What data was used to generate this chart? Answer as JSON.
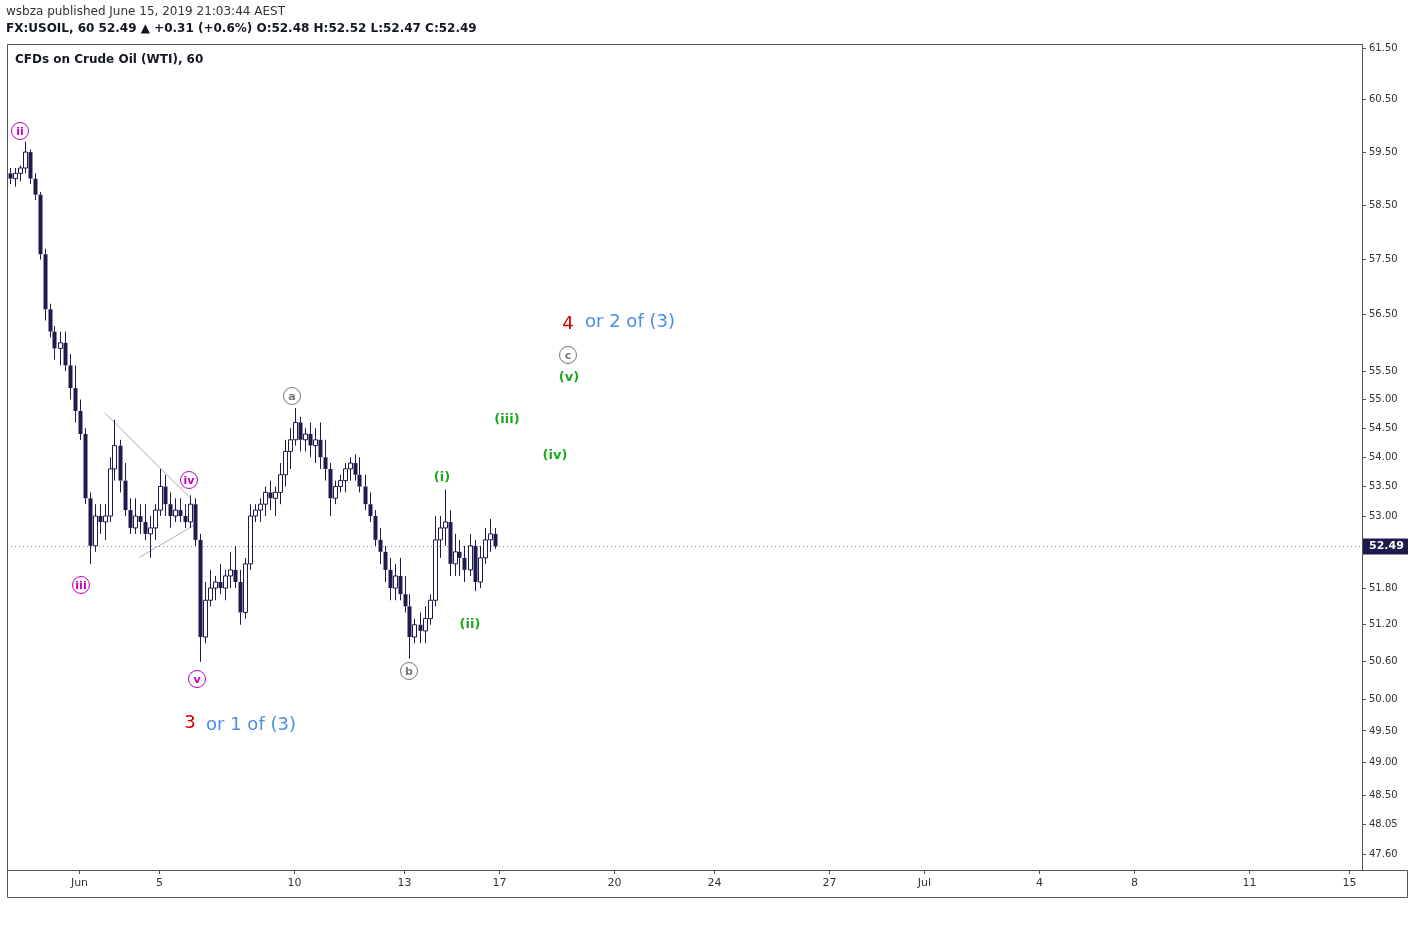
{
  "chart_data": {
    "type": "candlestick",
    "title": "CFDs on Crude Oil (WTI), 60",
    "subtitle": "FX:USOIL, 60 52.49 ▲ +0.31 (+0.6%) O:52.48 H:52.52 L:52.47 C:52.49",
    "categories": [
      null,
      null,
      null,
      null,
      null,
      null,
      null,
      null,
      null,
      null,
      null,
      null,
      null,
      null,
      "Jun",
      null,
      null,
      null,
      null,
      null,
      null,
      null,
      null,
      null,
      null,
      null,
      null,
      null,
      null,
      null,
      "5",
      null,
      null,
      null,
      null,
      null,
      null,
      null,
      null,
      null,
      null,
      null,
      null,
      null,
      null,
      null,
      null,
      null,
      null,
      null,
      null,
      null,
      null,
      null,
      null,
      null,
      null,
      "10",
      null,
      null,
      null,
      null,
      null,
      null,
      null,
      null,
      null,
      null,
      null,
      null,
      null,
      null,
      null,
      null,
      null,
      null,
      null,
      null,
      null,
      "13",
      null,
      null,
      null,
      null,
      null,
      null,
      null,
      null,
      null,
      null,
      null,
      null,
      null,
      null,
      null,
      null,
      null,
      null,
      "17",
      null,
      null,
      null,
      null,
      null,
      null,
      null,
      null,
      null,
      null,
      null,
      null,
      null,
      null,
      null,
      null,
      null,
      null,
      null,
      null,
      null,
      null,
      "20",
      null,
      null,
      null,
      null,
      null,
      null,
      null,
      null,
      null,
      null,
      null,
      null,
      null,
      null,
      null,
      null,
      null,
      null,
      null,
      "24",
      null,
      null,
      null,
      null,
      null,
      null,
      null,
      null,
      null,
      null,
      null,
      null,
      null,
      null,
      null,
      null,
      null,
      null,
      null,
      null,
      null,
      null,
      "27",
      null,
      null,
      null,
      null,
      null,
      null,
      null,
      null,
      null,
      null,
      null,
      null,
      null,
      null,
      null,
      null,
      null,
      null,
      "Jul",
      null,
      null,
      null,
      null,
      null,
      null,
      null,
      null,
      null,
      null,
      null,
      null,
      null,
      null,
      null,
      null,
      null,
      null,
      null,
      null,
      null,
      null,
      "4",
      null,
      null,
      null,
      null,
      null,
      null,
      null,
      null,
      null,
      null,
      null,
      null,
      null,
      null,
      null,
      null,
      null,
      null,
      "8",
      null,
      null,
      null,
      null,
      null,
      null,
      null,
      null,
      null,
      null,
      null,
      null,
      null,
      null,
      null,
      null,
      null,
      null,
      null,
      null,
      null,
      null,
      "11",
      null,
      null,
      null,
      null,
      null,
      null,
      null,
      null,
      null,
      null,
      null,
      null,
      null,
      null,
      null,
      null,
      null,
      null,
      null,
      "15",
      null,
      null
    ],
    "ohlc": [
      [
        59.1,
        59.2,
        58.9,
        59.0
      ],
      [
        59.0,
        59.2,
        58.85,
        59.1
      ],
      [
        59.1,
        59.25,
        58.95,
        59.2
      ],
      [
        59.2,
        59.7,
        59.1,
        59.5
      ],
      [
        59.5,
        59.55,
        58.9,
        59.0
      ],
      [
        59.0,
        59.1,
        58.6,
        58.7
      ],
      [
        58.7,
        58.75,
        57.5,
        57.6
      ],
      [
        57.6,
        57.7,
        56.4,
        56.6
      ],
      [
        56.6,
        56.7,
        56.1,
        56.2
      ],
      [
        56.2,
        56.3,
        55.7,
        55.9
      ],
      [
        55.9,
        56.2,
        55.6,
        56.0
      ],
      [
        56.0,
        56.2,
        55.5,
        55.6
      ],
      [
        55.6,
        55.8,
        55.0,
        55.2
      ],
      [
        55.2,
        55.6,
        54.6,
        54.8
      ],
      [
        54.8,
        55.0,
        54.3,
        54.4
      ],
      [
        54.4,
        54.5,
        53.2,
        53.3
      ],
      [
        53.3,
        53.4,
        52.2,
        52.5
      ],
      [
        52.5,
        53.2,
        52.4,
        53.0
      ],
      [
        53.0,
        53.2,
        52.7,
        52.9
      ],
      [
        52.9,
        53.2,
        52.6,
        53.0
      ],
      [
        53.0,
        54.0,
        52.9,
        53.8
      ],
      [
        53.8,
        54.65,
        53.6,
        54.2
      ],
      [
        54.2,
        54.3,
        53.4,
        53.6
      ],
      [
        53.6,
        53.9,
        53.0,
        53.1
      ],
      [
        53.1,
        53.3,
        52.7,
        52.8
      ],
      [
        52.8,
        53.3,
        52.7,
        53.0
      ],
      [
        53.0,
        53.2,
        52.7,
        52.9
      ],
      [
        52.9,
        53.2,
        52.6,
        52.7
      ],
      [
        52.7,
        53.0,
        52.3,
        52.8
      ],
      [
        52.8,
        53.2,
        52.6,
        53.1
      ],
      [
        53.1,
        53.8,
        53.0,
        53.5
      ],
      [
        53.5,
        53.7,
        53.0,
        53.2
      ],
      [
        53.2,
        53.4,
        52.8,
        53.0
      ],
      [
        53.0,
        53.3,
        52.9,
        53.1
      ],
      [
        53.1,
        53.3,
        52.9,
        53.0
      ],
      [
        53.0,
        53.2,
        52.8,
        52.9
      ],
      [
        52.9,
        53.35,
        52.8,
        53.2
      ],
      [
        53.2,
        53.3,
        52.5,
        52.6
      ],
      [
        52.6,
        52.7,
        50.6,
        51.0
      ],
      [
        51.0,
        51.9,
        50.9,
        51.6
      ],
      [
        51.6,
        52.1,
        51.5,
        51.8
      ],
      [
        51.8,
        52.0,
        51.6,
        51.9
      ],
      [
        51.9,
        52.2,
        51.7,
        51.8
      ],
      [
        51.8,
        52.1,
        51.6,
        52.0
      ],
      [
        52.0,
        52.4,
        51.8,
        52.1
      ],
      [
        52.1,
        52.5,
        51.8,
        51.9
      ],
      [
        51.9,
        52.1,
        51.2,
        51.4
      ],
      [
        51.4,
        52.3,
        51.3,
        52.2
      ],
      [
        52.2,
        53.2,
        52.1,
        53.0
      ],
      [
        53.0,
        53.2,
        52.9,
        53.1
      ],
      [
        53.1,
        53.3,
        52.9,
        53.2
      ],
      [
        53.2,
        53.5,
        53.0,
        53.4
      ],
      [
        53.4,
        53.6,
        53.1,
        53.3
      ],
      [
        53.3,
        53.5,
        53.0,
        53.4
      ],
      [
        53.4,
        53.9,
        53.2,
        53.7
      ],
      [
        53.7,
        54.3,
        53.5,
        54.1
      ],
      [
        54.1,
        54.5,
        53.8,
        54.3
      ],
      [
        54.3,
        54.85,
        54.2,
        54.6
      ],
      [
        54.6,
        54.7,
        54.1,
        54.3
      ],
      [
        54.3,
        54.5,
        54.1,
        54.4
      ],
      [
        54.4,
        54.6,
        54.0,
        54.2
      ],
      [
        54.2,
        54.5,
        53.9,
        54.3
      ],
      [
        54.3,
        54.6,
        53.8,
        54.0
      ],
      [
        54.0,
        54.3,
        53.6,
        53.8
      ],
      [
        53.8,
        53.9,
        53.0,
        53.3
      ],
      [
        53.3,
        53.6,
        53.2,
        53.5
      ],
      [
        53.5,
        53.7,
        53.4,
        53.6
      ],
      [
        53.6,
        53.9,
        53.4,
        53.8
      ],
      [
        53.8,
        54.0,
        53.6,
        53.9
      ],
      [
        53.9,
        54.05,
        53.6,
        53.7
      ],
      [
        53.7,
        54.0,
        53.4,
        53.5
      ],
      [
        53.5,
        53.7,
        53.1,
        53.2
      ],
      [
        53.2,
        53.4,
        52.9,
        53.0
      ],
      [
        53.0,
        53.1,
        52.5,
        52.6
      ],
      [
        52.6,
        52.8,
        52.2,
        52.4
      ],
      [
        52.4,
        52.5,
        51.9,
        52.1
      ],
      [
        52.1,
        52.3,
        51.6,
        51.8
      ],
      [
        51.8,
        52.2,
        51.6,
        52.0
      ],
      [
        52.0,
        52.3,
        51.6,
        51.7
      ],
      [
        51.7,
        52.0,
        51.4,
        51.5
      ],
      [
        51.5,
        51.7,
        50.65,
        51.0
      ],
      [
        51.0,
        51.3,
        50.9,
        51.2
      ],
      [
        51.2,
        51.4,
        50.9,
        51.1
      ],
      [
        51.1,
        51.5,
        50.9,
        51.3
      ],
      [
        51.3,
        51.7,
        51.2,
        51.6
      ],
      [
        51.6,
        53.0,
        51.5,
        52.6
      ],
      [
        52.6,
        53.0,
        52.3,
        52.8
      ],
      [
        52.8,
        53.45,
        52.5,
        52.9
      ],
      [
        52.9,
        53.1,
        52.0,
        52.2
      ],
      [
        52.2,
        52.7,
        52.0,
        52.4
      ],
      [
        52.4,
        52.6,
        52.0,
        52.3
      ],
      [
        52.3,
        52.5,
        51.9,
        52.1
      ],
      [
        52.1,
        52.7,
        52.0,
        52.5
      ],
      [
        52.5,
        52.6,
        51.75,
        51.9
      ],
      [
        51.9,
        52.5,
        51.8,
        52.3
      ],
      [
        52.3,
        52.8,
        52.2,
        52.6
      ],
      [
        52.6,
        52.95,
        52.4,
        52.7
      ],
      [
        52.7,
        52.8,
        52.45,
        52.49
      ],
      null,
      null,
      null,
      null,
      null,
      null,
      null,
      null,
      null,
      null,
      null,
      null,
      null,
      null,
      null,
      null,
      null,
      null,
      null,
      null,
      null,
      null,
      null,
      null,
      null,
      null,
      null,
      null,
      null,
      null,
      null,
      null,
      null,
      null,
      null,
      null,
      null,
      null,
      null,
      null,
      null,
      null,
      null,
      null,
      null,
      null,
      null,
      null,
      null,
      null,
      null,
      null,
      null,
      null,
      null,
      null,
      null,
      null,
      null,
      null,
      null,
      null,
      null,
      null,
      null,
      null,
      null,
      null,
      null,
      null,
      null,
      null,
      null,
      null,
      null,
      null,
      null,
      null,
      null,
      null,
      null,
      null,
      null,
      null,
      null,
      null,
      null,
      null,
      null,
      null,
      null,
      null,
      null,
      null,
      null,
      null,
      null,
      null,
      null,
      null,
      null,
      null,
      null,
      null,
      null,
      null,
      null,
      null,
      null,
      null,
      null,
      null,
      null,
      null,
      null,
      null,
      null,
      null,
      null,
      null,
      null,
      null,
      null,
      null,
      null,
      null,
      null,
      null,
      null,
      null,
      null,
      null,
      null,
      null,
      null,
      null,
      null,
      null,
      null,
      null,
      null,
      null,
      null,
      null,
      null,
      null,
      null,
      null,
      null,
      null,
      null,
      null,
      null,
      null,
      null,
      null,
      null,
      null,
      null,
      null,
      null,
      null,
      null,
      null,
      null,
      null,
      null,
      null,
      null,
      null,
      null,
      null,
      null
    ],
    "color": "#1e1a4d",
    "series": [
      {
        "type": "line",
        "color": "#b0b0b0",
        "values": [
          null,
          null,
          null,
          null,
          null,
          null,
          null,
          null,
          null,
          null,
          null,
          null,
          null,
          null,
          null,
          null,
          null,
          null,
          null,
          54.77,
          null,
          null,
          null,
          null,
          null,
          null,
          null,
          null,
          null,
          null,
          null,
          null,
          null,
          null,
          null,
          null,
          53.32,
          null,
          null,
          null,
          null,
          null,
          null,
          null,
          null,
          null,
          null,
          null,
          null,
          null,
          null,
          null,
          null,
          null,
          null,
          null,
          null,
          null,
          null,
          null,
          null,
          null,
          null,
          null,
          null,
          null,
          null,
          null,
          null,
          null,
          null,
          null,
          null,
          null,
          null,
          null,
          null,
          null,
          null,
          null,
          null,
          null,
          null,
          null,
          null,
          null,
          null,
          null,
          null,
          null,
          null,
          null,
          null,
          null,
          null,
          null,
          null,
          null,
          null,
          null,
          null,
          null,
          null,
          null,
          null,
          null,
          null,
          null,
          null,
          null,
          null,
          null,
          null,
          null,
          null,
          null,
          null,
          null,
          null,
          null,
          null,
          null,
          null,
          null,
          null,
          null,
          null,
          null,
          null,
          null,
          null,
          null,
          null,
          null,
          null,
          null,
          null,
          null,
          null,
          null,
          null,
          null,
          null,
          null,
          null,
          null,
          null,
          null,
          null,
          null,
          null,
          null,
          null,
          null,
          null,
          null,
          null,
          null,
          null,
          null,
          null,
          null,
          null,
          null,
          null,
          null,
          null,
          null,
          null,
          null,
          null,
          null,
          null,
          null,
          null,
          null,
          null,
          null,
          null,
          null,
          null,
          null,
          null,
          null,
          null,
          null,
          null,
          null,
          null,
          null,
          null,
          null,
          null,
          null,
          null,
          null,
          null,
          null,
          null,
          null,
          null,
          null,
          null,
          null,
          null,
          null,
          null,
          null,
          null,
          null,
          null,
          null,
          null,
          null,
          null,
          null,
          null,
          null,
          null,
          null,
          null,
          null,
          null,
          null,
          null,
          null,
          null,
          null,
          null,
          null,
          null,
          null,
          null,
          null,
          null,
          null,
          null,
          null,
          null,
          null,
          null,
          null,
          null,
          null,
          null,
          null,
          null,
          null,
          null,
          null,
          null,
          null,
          null,
          null,
          null,
          null,
          null,
          null,
          null,
          null,
          null,
          null,
          null,
          null,
          null,
          null,
          null,
          null,
          null,
          null,
          null
        ]
      },
      {
        "type": "line",
        "color": "#b0b0b0",
        "values": [
          null,
          null,
          null,
          null,
          null,
          null,
          null,
          null,
          null,
          null,
          null,
          null,
          null,
          null,
          null,
          null,
          null,
          null,
          null,
          null,
          null,
          null,
          null,
          null,
          null,
          null,
          52.31,
          null,
          null,
          null,
          null,
          null,
          null,
          null,
          null,
          null,
          null,
          52.85,
          null,
          null,
          null,
          null,
          null,
          null,
          null,
          null,
          null,
          null,
          null,
          null,
          null,
          null,
          null,
          null,
          null,
          null,
          null,
          null,
          null,
          null,
          null,
          null,
          null,
          null,
          null,
          null,
          null,
          null,
          null,
          null,
          null,
          null,
          null,
          null,
          null,
          null,
          null,
          null,
          null,
          null,
          null,
          null,
          null,
          null,
          null,
          null,
          null,
          null,
          null,
          null,
          null,
          null,
          null,
          null,
          null,
          null,
          null,
          null,
          null,
          null,
          null,
          null,
          null,
          null,
          null,
          null,
          null,
          null,
          null,
          null,
          null,
          null,
          null,
          null,
          null,
          null,
          null,
          null,
          null,
          null,
          null,
          null,
          null,
          null,
          null,
          null,
          null,
          null,
          null,
          null,
          null,
          null,
          null,
          null,
          null,
          null,
          null,
          null,
          null,
          null,
          null,
          null,
          null,
          null,
          null,
          null,
          null,
          null,
          null,
          null,
          null,
          null,
          null,
          null,
          null,
          null,
          null,
          null,
          null,
          null,
          null,
          null,
          null,
          null,
          null,
          null,
          null,
          null,
          null,
          null,
          null,
          null,
          null,
          null,
          null,
          null,
          null,
          null,
          null,
          null,
          null,
          null,
          null,
          null,
          null,
          null,
          null,
          null,
          null,
          null,
          null,
          null,
          null,
          null,
          null,
          null,
          null,
          null,
          null,
          null,
          null,
          null,
          null,
          null,
          null,
          null,
          null,
          null,
          null,
          null,
          null,
          null,
          null,
          null,
          null,
          null,
          null,
          null,
          null,
          null,
          null,
          null,
          null,
          null,
          null,
          null,
          null,
          null,
          null,
          null,
          null,
          null,
          null,
          null,
          null,
          null,
          null,
          null,
          null,
          null,
          null,
          null,
          null,
          null,
          null,
          null,
          null,
          null,
          null,
          null,
          null,
          null,
          null,
          null,
          null,
          null,
          null,
          null,
          null,
          null,
          null,
          null,
          null,
          null,
          null,
          null,
          null,
          null,
          null,
          null,
          null
        ]
      }
    ],
    "log": true,
    "grid": false,
    "legend": false,
    "marker": "none",
    "ylim": [
      47.36,
      61.58
    ],
    "yticks": [
      {
        "value": 47.6,
        "label": "47.60"
      },
      {
        "value": 48.05,
        "label": "48.05"
      },
      {
        "value": 48.5,
        "label": "48.50"
      },
      {
        "value": 49,
        "label": "49.00"
      },
      {
        "value": 49.5,
        "label": "49.50"
      },
      {
        "value": 50,
        "label": "50.00"
      },
      {
        "value": 50.6,
        "label": "50.60"
      },
      {
        "value": 51.2,
        "label": "51.20"
      },
      {
        "value": 51.8,
        "label": "51.80"
      },
      {
        "value": 53,
        "label": "53.00"
      },
      {
        "value": 53.5,
        "label": "53.50"
      },
      {
        "value": 54,
        "label": "54.00"
      },
      {
        "value": 54.5,
        "label": "54.50"
      },
      {
        "value": 55,
        "label": "55.00"
      },
      {
        "value": 55.5,
        "label": "55.50"
      },
      {
        "value": 56.5,
        "label": "56.50"
      },
      {
        "value": 57.5,
        "label": "57.50"
      },
      {
        "value": 58.5,
        "label": "58.50"
      },
      {
        "value": 59.5,
        "label": "59.50"
      },
      {
        "value": 60.5,
        "label": "60.50"
      },
      {
        "value": 61.5,
        "label": "61.50"
      }
    ],
    "ref_lines": [
      {
        "axis": "y",
        "value": 52.49,
        "label": "52.49",
        "color": "#1e1a4d",
        "line_style": "dotted"
      }
    ],
    "annotations": [
      "wsbza published June 15, 2019 21:03:44 AEST",
      "ii",
      "iii",
      "iv",
      "v",
      "a",
      "b",
      "c",
      "(i)",
      "(ii)",
      "(iii)",
      "(iv)",
      "(v)",
      "3",
      "or 1 of (3)",
      "4",
      "or 2 of (3)"
    ]
  }
}
